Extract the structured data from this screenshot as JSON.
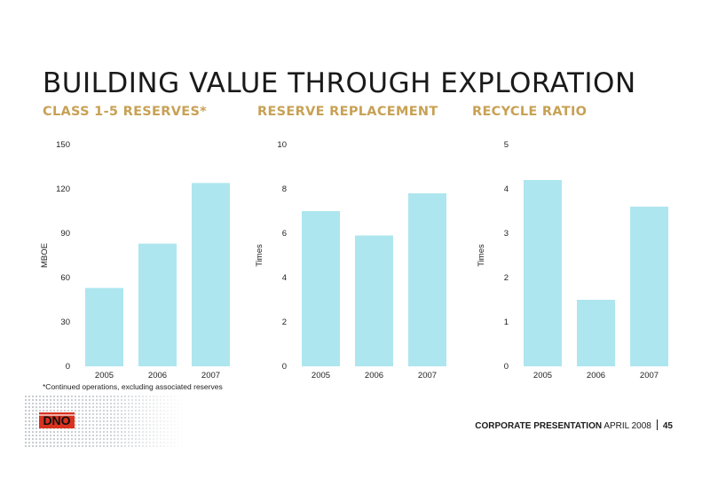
{
  "slide": {
    "title": "BUILDING VALUE THROUGH EXPLORATION",
    "footnote": "*Continued operations, excluding associated reserves",
    "footer_bold": "CORPORATE PRESENTATION",
    "footer_date": "APRIL 2008",
    "page_number": "45",
    "logo_text": "DNO",
    "colors": {
      "bar": "#aee6ef",
      "title_accent": "#c8a155",
      "logo_red": "#d9321f"
    }
  },
  "chart_data": [
    {
      "type": "bar",
      "title": "CLASS 1-5 RESERVES*",
      "ylabel": "MBOE",
      "categories": [
        "2005",
        "2006",
        "2007"
      ],
      "values": [
        53,
        83,
        124
      ],
      "ylim": [
        0,
        150
      ],
      "yticks": [
        "0",
        "30",
        "60",
        "90",
        "120",
        "150"
      ]
    },
    {
      "type": "bar",
      "title": "RESERVE REPLACEMENT",
      "ylabel": "Times",
      "categories": [
        "2005",
        "2006",
        "2007"
      ],
      "values": [
        7.0,
        5.9,
        7.8
      ],
      "ylim": [
        0,
        10
      ],
      "yticks": [
        "0",
        "2",
        "4",
        "6",
        "8",
        "10"
      ]
    },
    {
      "type": "bar",
      "title": "RECYCLE RATIO",
      "ylabel": "Times",
      "categories": [
        "2005",
        "2006",
        "2007"
      ],
      "values": [
        4.2,
        1.5,
        3.6
      ],
      "ylim": [
        0,
        5
      ],
      "yticks": [
        "0",
        "1",
        "2",
        "3",
        "4",
        "5"
      ]
    }
  ]
}
